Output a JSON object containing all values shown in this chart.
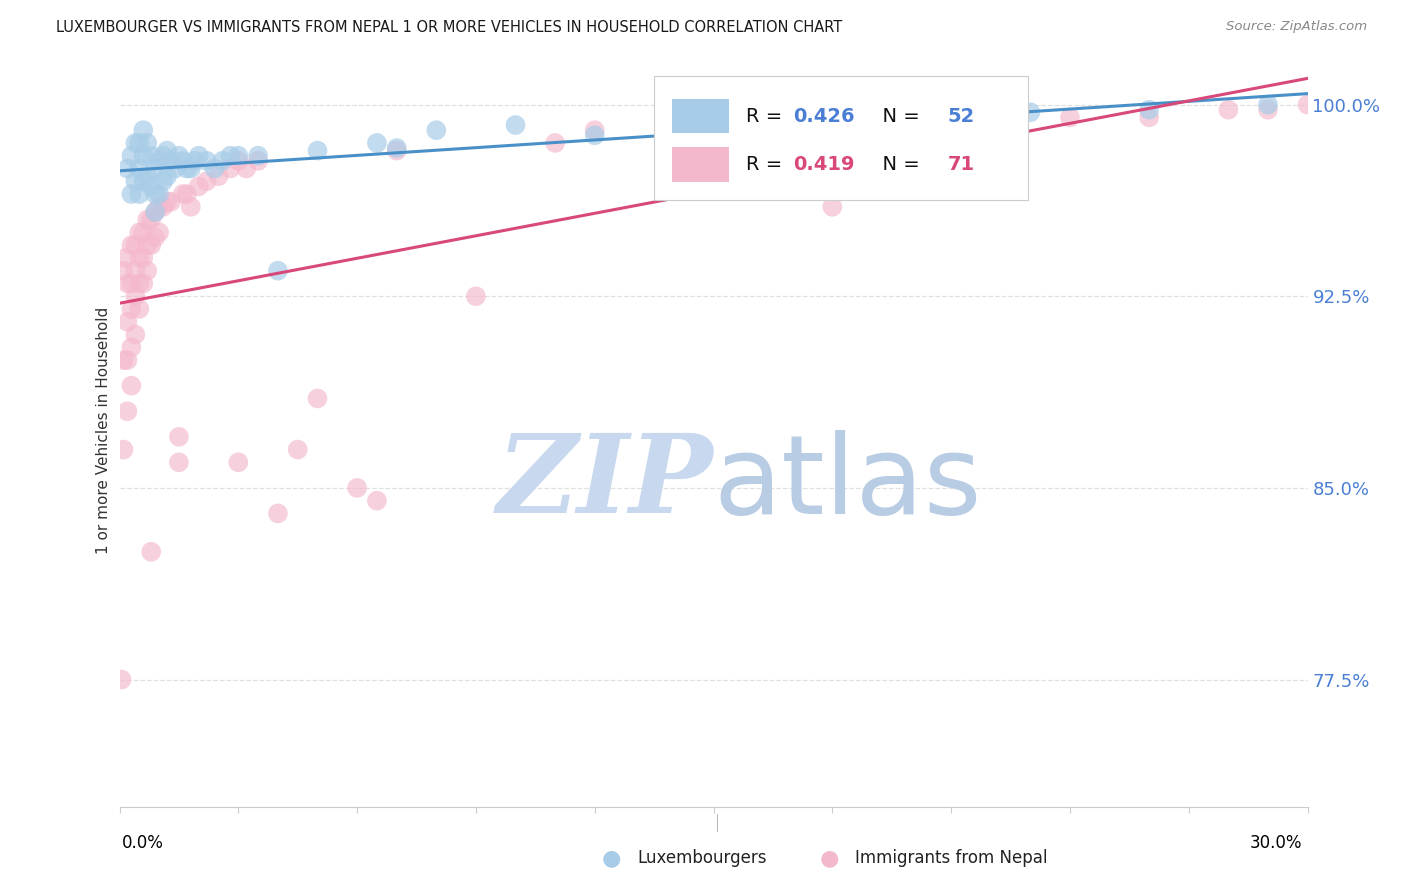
{
  "title": "LUXEMBOURGER VS IMMIGRANTS FROM NEPAL 1 OR MORE VEHICLES IN HOUSEHOLD CORRELATION CHART",
  "source": "Source: ZipAtlas.com",
  "ylabel": "1 or more Vehicles in Household",
  "ytick_vals": [
    77.5,
    85.0,
    92.5,
    100.0
  ],
  "ytick_labels": [
    "77.5%",
    "85.0%",
    "92.5%",
    "100.0%"
  ],
  "xtick_left": "0.0%",
  "xtick_right": "30.0%",
  "xmin": 0.0,
  "xmax": 30.0,
  "ymin": 72.5,
  "ymax": 102.0,
  "legend_lux": "Luxembourgers",
  "legend_nep": "Immigrants from Nepal",
  "R_lux": "0.426",
  "N_lux": "52",
  "R_nep": "0.419",
  "N_nep": "71",
  "lux_color": "#a8cce8",
  "nep_color": "#f4b8cc",
  "lux_line_color": "#4a90c8",
  "nep_line_color": "#d84878",
  "value_color": "#4a7fd4",
  "watermark_color": "#dce8f5",
  "bg_color": "#ffffff",
  "grid_color": "#e0e0e0",
  "lux_x": [
    0.2,
    0.3,
    0.3,
    0.4,
    0.4,
    0.5,
    0.5,
    0.5,
    0.6,
    0.6,
    0.6,
    0.7,
    0.7,
    0.8,
    0.8,
    0.9,
    0.9,
    0.9,
    1.0,
    1.0,
    1.1,
    1.1,
    1.2,
    1.2,
    1.3,
    1.4,
    1.5,
    1.6,
    1.7,
    1.8,
    1.9,
    2.0,
    2.2,
    2.4,
    2.6,
    2.8,
    3.0,
    3.5,
    4.0,
    5.0,
    6.5,
    7.0,
    8.0,
    10.0,
    12.0,
    14.0,
    17.0,
    18.0,
    20.0,
    23.0,
    26.0,
    29.0
  ],
  "lux_y": [
    97.5,
    98.0,
    96.5,
    98.5,
    97.0,
    98.5,
    97.5,
    96.5,
    99.0,
    98.0,
    97.0,
    98.5,
    97.2,
    98.0,
    96.8,
    97.5,
    96.5,
    95.8,
    97.8,
    96.5,
    98.0,
    97.0,
    98.2,
    97.2,
    97.8,
    97.5,
    98.0,
    97.8,
    97.5,
    97.5,
    97.8,
    98.0,
    97.8,
    97.5,
    97.8,
    98.0,
    98.0,
    98.0,
    93.5,
    98.2,
    98.5,
    98.3,
    99.0,
    99.2,
    98.8,
    99.2,
    99.4,
    99.0,
    99.5,
    99.7,
    99.8,
    100.0
  ],
  "nep_x": [
    0.05,
    0.1,
    0.1,
    0.1,
    0.15,
    0.2,
    0.2,
    0.2,
    0.2,
    0.3,
    0.3,
    0.3,
    0.3,
    0.3,
    0.4,
    0.4,
    0.4,
    0.4,
    0.5,
    0.5,
    0.5,
    0.5,
    0.6,
    0.6,
    0.6,
    0.7,
    0.7,
    0.7,
    0.8,
    0.8,
    0.9,
    0.9,
    1.0,
    1.0,
    1.1,
    1.2,
    1.3,
    1.5,
    1.6,
    1.7,
    1.8,
    2.0,
    2.2,
    2.5,
    2.8,
    3.0,
    3.2,
    3.5,
    4.0,
    4.5,
    5.0,
    6.0,
    7.0,
    9.0,
    11.0,
    12.0,
    14.0,
    16.0,
    18.0,
    20.0,
    22.0,
    24.0,
    26.0,
    28.0,
    29.0,
    30.0,
    0.8,
    1.5,
    3.0,
    6.5,
    18.0
  ],
  "nep_y": [
    77.5,
    93.5,
    90.0,
    86.5,
    94.0,
    93.0,
    91.5,
    90.0,
    88.0,
    94.5,
    93.0,
    92.0,
    90.5,
    89.0,
    94.5,
    93.5,
    92.5,
    91.0,
    95.0,
    94.0,
    93.0,
    92.0,
    95.0,
    94.0,
    93.0,
    95.5,
    94.5,
    93.5,
    95.5,
    94.5,
    95.8,
    94.8,
    96.0,
    95.0,
    96.0,
    96.2,
    96.2,
    86.0,
    96.5,
    96.5,
    96.0,
    96.8,
    97.0,
    97.2,
    97.5,
    97.8,
    97.5,
    97.8,
    84.0,
    86.5,
    88.5,
    85.0,
    98.2,
    92.5,
    98.5,
    99.0,
    99.2,
    99.0,
    99.2,
    99.5,
    99.5,
    99.5,
    99.5,
    99.8,
    99.8,
    100.0,
    82.5,
    87.0,
    86.0,
    84.5,
    96.0
  ]
}
